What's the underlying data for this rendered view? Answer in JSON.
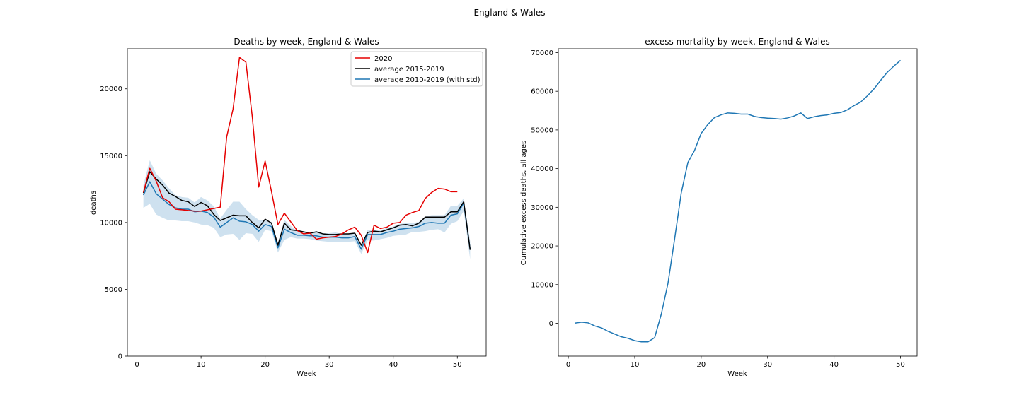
{
  "suptitle": "England & Wales",
  "legend": {
    "placement": "upper right",
    "entries": [
      {
        "label": "2020",
        "color": "#e50000"
      },
      {
        "label": "average 2015-2019",
        "color": "#000000"
      },
      {
        "label": "average 2010-2019 (with std)",
        "color": "#1f77b4"
      }
    ]
  },
  "chart_data": [
    {
      "type": "line",
      "title": "Deaths by week, England & Wales",
      "xlabel": "Week",
      "ylabel": "deaths",
      "xlim": [
        -1.5,
        54.5
      ],
      "ylim": [
        0,
        23000
      ],
      "xticks": [
        0,
        10,
        20,
        30,
        40,
        50
      ],
      "yticks": [
        0,
        5000,
        10000,
        15000,
        20000
      ],
      "grid": false,
      "series": [
        {
          "name": "2020",
          "color": "#e50000",
          "x": [
            1,
            2,
            3,
            4,
            5,
            6,
            7,
            8,
            9,
            10,
            11,
            12,
            13,
            14,
            15,
            16,
            17,
            18,
            19,
            20,
            21,
            22,
            23,
            24,
            25,
            26,
            27,
            28,
            29,
            30,
            31,
            32,
            33,
            34,
            35,
            36,
            37,
            38,
            39,
            40,
            41,
            42,
            43,
            44,
            45,
            46,
            47,
            48,
            49,
            50
          ],
          "y": [
            12250,
            14050,
            13100,
            11850,
            11550,
            11000,
            10950,
            10900,
            10850,
            10850,
            10950,
            11050,
            11150,
            16400,
            18500,
            22350,
            22000,
            17900,
            12650,
            14600,
            12300,
            9850,
            10700,
            10050,
            9400,
            9150,
            9200,
            8750,
            8850,
            8900,
            8950,
            9150,
            9450,
            9650,
            9050,
            7750,
            9800,
            9550,
            9650,
            9950,
            10000,
            10550,
            10750,
            10900,
            11800,
            12250,
            12550,
            12500,
            12300,
            12300
          ]
        },
        {
          "name": "average 2015-2019",
          "color": "#000000",
          "x": [
            1,
            2,
            3,
            4,
            5,
            6,
            7,
            8,
            9,
            10,
            11,
            12,
            13,
            14,
            15,
            16,
            17,
            18,
            19,
            20,
            21,
            22,
            23,
            24,
            25,
            26,
            27,
            28,
            29,
            30,
            31,
            32,
            33,
            34,
            35,
            36,
            37,
            38,
            39,
            40,
            41,
            42,
            43,
            44,
            45,
            46,
            47,
            48,
            49,
            50,
            51,
            52
          ],
          "y": [
            12200,
            13800,
            13250,
            12800,
            12200,
            11950,
            11650,
            11550,
            11200,
            11500,
            11250,
            10600,
            10150,
            10350,
            10550,
            10500,
            10500,
            10000,
            9600,
            10250,
            9950,
            8300,
            9950,
            9450,
            9400,
            9300,
            9200,
            9300,
            9150,
            9100,
            9100,
            9150,
            9150,
            9200,
            8300,
            9250,
            9350,
            9300,
            9450,
            9600,
            9800,
            9850,
            9750,
            9950,
            10400,
            10400,
            10400,
            10400,
            10800,
            10800,
            11550,
            7950
          ]
        },
        {
          "name": "average 2010-2019 (with std)",
          "color": "#1f77b4",
          "x": [
            1,
            2,
            3,
            4,
            5,
            6,
            7,
            8,
            9,
            10,
            11,
            12,
            13,
            14,
            15,
            16,
            17,
            18,
            19,
            20,
            21,
            22,
            23,
            24,
            25,
            26,
            27,
            28,
            29,
            30,
            31,
            32,
            33,
            34,
            35,
            36,
            37,
            38,
            39,
            40,
            41,
            42,
            43,
            44,
            45,
            46,
            47,
            48,
            49,
            50,
            51,
            52
          ],
          "y": [
            12050,
            13050,
            12150,
            11750,
            11350,
            11100,
            11000,
            11000,
            10800,
            10850,
            10750,
            10400,
            9650,
            10000,
            10350,
            10100,
            10050,
            9850,
            9350,
            9850,
            9700,
            8100,
            9500,
            9250,
            9050,
            9050,
            9000,
            9000,
            8900,
            8900,
            8900,
            8850,
            8850,
            8950,
            8000,
            9100,
            9100,
            9100,
            9250,
            9350,
            9500,
            9550,
            9600,
            9700,
            9950,
            10000,
            9950,
            9950,
            10550,
            10650,
            11450,
            8000
          ]
        }
      ],
      "std_band": {
        "series": "average 2010-2019 (with std)",
        "color": "#1f77b4",
        "x": [
          1,
          2,
          3,
          4,
          5,
          6,
          7,
          8,
          9,
          10,
          11,
          12,
          13,
          14,
          15,
          16,
          17,
          18,
          19,
          20,
          21,
          22,
          23,
          24,
          25,
          26,
          27,
          28,
          29,
          30,
          31,
          32,
          33,
          34,
          35,
          36,
          37,
          38,
          39,
          40,
          41,
          42,
          43,
          44,
          45,
          46,
          47,
          48,
          49,
          50,
          51,
          52
        ],
        "lower": [
          11100,
          11400,
          10600,
          10350,
          10150,
          10150,
          10100,
          10100,
          10000,
          9850,
          9800,
          9600,
          8900,
          9100,
          9150,
          8700,
          9200,
          9150,
          8550,
          9450,
          9350,
          7750,
          8700,
          8900,
          8800,
          8800,
          8750,
          8650,
          8600,
          8550,
          8550,
          8550,
          8550,
          8600,
          7650,
          8650,
          8650,
          8750,
          8850,
          9000,
          9050,
          9100,
          9300,
          9300,
          9350,
          9450,
          9500,
          9250,
          9900,
          10100,
          10850,
          7250
        ],
        "upper": [
          12800,
          14650,
          13650,
          13150,
          12550,
          12050,
          11900,
          11850,
          11500,
          11900,
          11650,
          11200,
          10300,
          10950,
          11550,
          11550,
          11000,
          10550,
          10200,
          10150,
          10050,
          8500,
          10200,
          9750,
          9350,
          9300,
          9250,
          9350,
          9200,
          9200,
          9250,
          9150,
          9150,
          9200,
          8300,
          9450,
          9450,
          9400,
          9600,
          9700,
          9900,
          9950,
          9950,
          10050,
          10450,
          10550,
          10550,
          10550,
          11250,
          11250,
          11800,
          8600
        ]
      }
    },
    {
      "type": "line",
      "title": "excess mortality by week, England & Wales",
      "xlabel": "Week",
      "ylabel": "Cumulative excess deaths, all ages",
      "xlim": [
        -1.5,
        52.5
      ],
      "ylim": [
        -8500,
        71000
      ],
      "xticks": [
        0,
        10,
        20,
        30,
        40,
        50
      ],
      "yticks": [
        0,
        10000,
        20000,
        30000,
        40000,
        50000,
        60000,
        70000
      ],
      "grid": false,
      "series": [
        {
          "color": "#1f77b4",
          "x": [
            1,
            2,
            3,
            4,
            5,
            6,
            7,
            8,
            9,
            10,
            11,
            12,
            13,
            14,
            15,
            16,
            17,
            18,
            19,
            20,
            21,
            22,
            23,
            24,
            25,
            26,
            27,
            28,
            29,
            30,
            31,
            32,
            33,
            34,
            35,
            36,
            37,
            38,
            39,
            40,
            41,
            42,
            43,
            44,
            45,
            46,
            47,
            48,
            49,
            50
          ],
          "y": [
            50,
            300,
            100,
            -700,
            -1200,
            -2100,
            -2800,
            -3500,
            -3900,
            -4500,
            -4800,
            -4800,
            -3700,
            2400,
            10300,
            21800,
            33700,
            41600,
            44700,
            49100,
            51400,
            53200,
            53900,
            54400,
            54300,
            54100,
            54100,
            53500,
            53200,
            53050,
            52950,
            52800,
            53100,
            53600,
            54400,
            52950,
            53400,
            53700,
            53900,
            54300,
            54500,
            55200,
            56300,
            57200,
            58800,
            60600,
            62800,
            64900,
            66500,
            68000
          ]
        }
      ]
    }
  ]
}
